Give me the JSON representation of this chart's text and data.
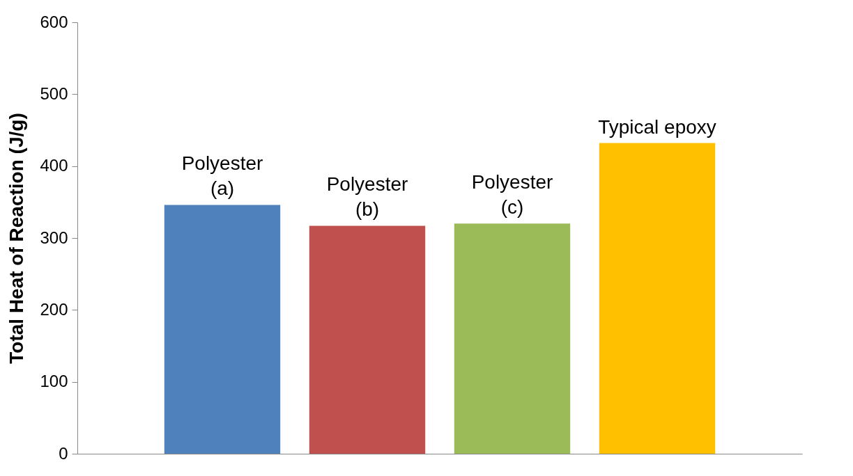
{
  "chart_data": {
    "type": "bar",
    "ylabel": "Total Heat of Reaction (J/g)",
    "categories": [
      "Polyester\n(a)",
      "Polyester\n(b)",
      "Polyester\n(c)",
      "Typical epoxy"
    ],
    "values": [
      346,
      317,
      320,
      432
    ],
    "colors": [
      "#4f81bd",
      "#c0504d",
      "#9bbb59",
      "#ffc000"
    ],
    "ylim": [
      0,
      600
    ],
    "yticks": [
      0,
      100,
      200,
      300,
      400,
      500,
      600
    ],
    "grid": false,
    "tick_labels": "y"
  }
}
